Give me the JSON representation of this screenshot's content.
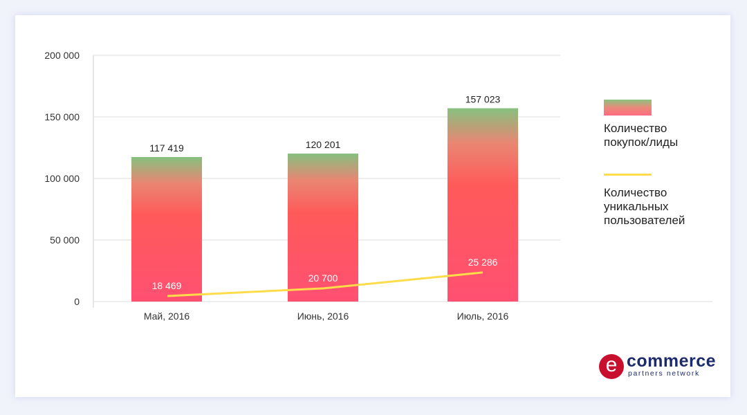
{
  "chart_data": {
    "type": "bar",
    "categories": [
      "Май, 2016",
      "Июнь, 2016",
      "Июль, 2016"
    ],
    "series": [
      {
        "name": "Количество покупок/лиды",
        "type": "bar",
        "values": [
          117419,
          120201,
          157023
        ],
        "labels": [
          "117 419",
          "120 201",
          "157 023"
        ]
      },
      {
        "name": "Количество уникальных пользователей",
        "type": "line",
        "values": [
          18469,
          20700,
          25286
        ],
        "labels": [
          "18 469",
          "20 700",
          "25 286"
        ],
        "secondary_axis_range": [
          16869,
          88069
        ]
      }
    ],
    "ylim": [
      0,
      200000
    ],
    "yticks": [
      0,
      50000,
      100000,
      150000,
      200000
    ],
    "ytick_labels": [
      "0",
      "50 000",
      "100 000",
      "150 000",
      "200 000"
    ],
    "grid": true,
    "legend_position": "right",
    "colors": {
      "bar_bottom": "#ff5072",
      "bar_mid": "#ff5a5a",
      "bar_top": "#86c07f",
      "line": "#ffdc4a"
    }
  },
  "legend": {
    "bars": "Количество покупок/лиды",
    "line": "Количество уникальных пользователей"
  },
  "logo": {
    "main": "commerce",
    "sub": "partners network",
    "letter": "e"
  }
}
